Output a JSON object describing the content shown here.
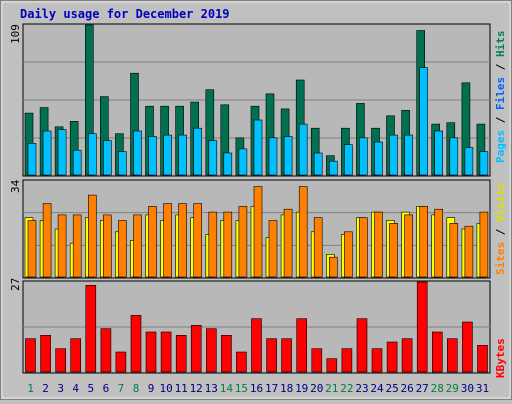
{
  "title": "Daily usage for December 2019",
  "colors": {
    "background": "#c0c0c0",
    "plot_background": "#b8b8b8",
    "title": "#0000c0",
    "hits": "#007050",
    "files": "#00c0ff",
    "pages": "#00e0ff",
    "visits": "#ffff00",
    "sites": "#ff8000",
    "kbytes": "#ff0000",
    "weekend_label": "#008040",
    "weekday_label": "#000080"
  },
  "chart_data": [
    {
      "type": "bar",
      "panel": "hits-files-pages",
      "ymax_label": "109",
      "ylim": [
        0,
        109
      ],
      "legend": {
        "pages": "Pages",
        "sep1": " / ",
        "files": "Files",
        "sep2": " / ",
        "hits": "Hits"
      },
      "categories": [
        "1",
        "2",
        "3",
        "4",
        "5",
        "6",
        "7",
        "8",
        "9",
        "10",
        "11",
        "12",
        "13",
        "14",
        "15",
        "16",
        "17",
        "18",
        "19",
        "20",
        "21",
        "22",
        "23",
        "24",
        "25",
        "26",
        "27",
        "28",
        "29",
        "30",
        "31"
      ],
      "series": [
        {
          "name": "Hits",
          "values": [
            45,
            49,
            35,
            39,
            109,
            57,
            30,
            74,
            50,
            50,
            50,
            53,
            62,
            51,
            27,
            50,
            59,
            48,
            69,
            34,
            14,
            34,
            52,
            34,
            43,
            47,
            105,
            37,
            38,
            67,
            37
          ]
        },
        {
          "name": "Files",
          "values": [
            23,
            32,
            33,
            18,
            30,
            25,
            17,
            32,
            28,
            29,
            29,
            34,
            25,
            16,
            19,
            40,
            27,
            28,
            37,
            16,
            10,
            22,
            27,
            24,
            29,
            29,
            78,
            32,
            27,
            20,
            17
          ]
        }
      ]
    },
    {
      "type": "bar",
      "panel": "visits-sites",
      "ymax_label": "34",
      "ylim": [
        0,
        34
      ],
      "legend": {
        "sites": "Sites",
        "sep": " / ",
        "visits": "Visits"
      },
      "categories": [
        "1",
        "2",
        "3",
        "4",
        "5",
        "6",
        "7",
        "8",
        "9",
        "10",
        "11",
        "12",
        "13",
        "14",
        "15",
        "16",
        "17",
        "18",
        "19",
        "20",
        "21",
        "22",
        "23",
        "24",
        "25",
        "26",
        "27",
        "28",
        "29",
        "30",
        "31"
      ],
      "series": [
        {
          "name": "Visits",
          "values": [
            21,
            20,
            17,
            12,
            21,
            20,
            16,
            13,
            22,
            20,
            22,
            21,
            15,
            20,
            20,
            25,
            14,
            22,
            23,
            16,
            8,
            15,
            21,
            23,
            20,
            23,
            25,
            22,
            21,
            17,
            19
          ]
        },
        {
          "name": "Sites",
          "values": [
            20,
            26,
            22,
            22,
            29,
            22,
            20,
            22,
            25,
            26,
            26,
            26,
            23,
            23,
            25,
            32,
            20,
            24,
            32,
            21,
            7,
            16,
            21,
            23,
            19,
            22,
            25,
            24,
            19,
            18,
            23
          ]
        }
      ]
    },
    {
      "type": "bar",
      "panel": "kbytes",
      "ymax_label": "27",
      "ylim": [
        0,
        27
      ],
      "legend": {
        "kbytes": "KBytes"
      },
      "categories": [
        "1",
        "2",
        "3",
        "4",
        "5",
        "6",
        "7",
        "8",
        "9",
        "10",
        "11",
        "12",
        "13",
        "14",
        "15",
        "16",
        "17",
        "18",
        "19",
        "20",
        "21",
        "22",
        "23",
        "24",
        "25",
        "26",
        "27",
        "28",
        "29",
        "30",
        "31"
      ],
      "series": [
        {
          "name": "KBytes",
          "values": [
            10,
            11,
            7,
            10,
            26,
            13,
            6,
            17,
            12,
            12,
            11,
            14,
            13,
            11,
            6,
            16,
            10,
            10,
            16,
            7,
            4,
            7,
            16,
            7,
            9,
            10,
            27,
            12,
            10,
            15,
            8
          ]
        }
      ]
    }
  ],
  "x_labels": [
    {
      "text": "1",
      "weekend": true
    },
    {
      "text": "2",
      "weekend": false
    },
    {
      "text": "3",
      "weekend": false
    },
    {
      "text": "4",
      "weekend": false
    },
    {
      "text": "5",
      "weekend": false
    },
    {
      "text": "6",
      "weekend": false
    },
    {
      "text": "7",
      "weekend": true
    },
    {
      "text": "8",
      "weekend": true
    },
    {
      "text": "9",
      "weekend": false
    },
    {
      "text": "10",
      "weekend": false
    },
    {
      "text": "11",
      "weekend": false
    },
    {
      "text": "12",
      "weekend": false
    },
    {
      "text": "13",
      "weekend": false
    },
    {
      "text": "14",
      "weekend": true
    },
    {
      "text": "15",
      "weekend": true
    },
    {
      "text": "16",
      "weekend": false
    },
    {
      "text": "17",
      "weekend": false
    },
    {
      "text": "18",
      "weekend": false
    },
    {
      "text": "19",
      "weekend": false
    },
    {
      "text": "20",
      "weekend": false
    },
    {
      "text": "21",
      "weekend": true
    },
    {
      "text": "22",
      "weekend": true
    },
    {
      "text": "23",
      "weekend": false
    },
    {
      "text": "24",
      "weekend": false
    },
    {
      "text": "25",
      "weekend": false
    },
    {
      "text": "26",
      "weekend": false
    },
    {
      "text": "27",
      "weekend": false
    },
    {
      "text": "28",
      "weekend": true
    },
    {
      "text": "29",
      "weekend": true
    },
    {
      "text": "30",
      "weekend": false
    },
    {
      "text": "31",
      "weekend": false
    }
  ]
}
